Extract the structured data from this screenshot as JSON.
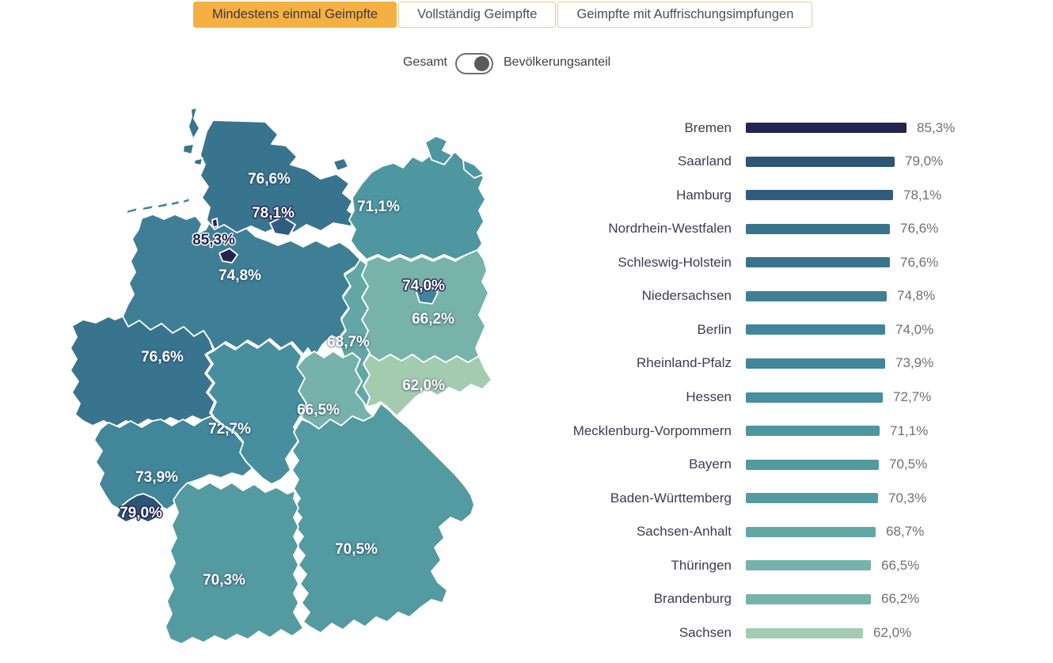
{
  "tabs": [
    {
      "id": "mindestens-einmal-geimpfte",
      "label": "Mindestens einmal Geimpfte",
      "active": true
    },
    {
      "id": "vollstaendig-geimpfte",
      "label": "Vollständig Geimpfte",
      "active": false
    },
    {
      "id": "geimpfte-mit-auffrischungsimpfungen",
      "label": "Geimpfte mit Auffrischungsimpfungen",
      "active": false
    }
  ],
  "toggle": {
    "left_label": "Gesamt",
    "right_label": "Bevölkerungsanteil",
    "selected": "right"
  },
  "colors": {
    "active_tab_bg": "#f4b042",
    "tab_border": "#ecca8e",
    "toggle_knob": "#5a5a5a",
    "toggle_border": "#6e6e6e",
    "bar_name_text": "#3c3c50",
    "bar_value_text": "#6f6f6f",
    "map_border": "#ffffff"
  },
  "chart_data": {
    "type": "bar",
    "subtype": "choropleth-map-with-horizontal-bars",
    "orientation": "horizontal",
    "unit": "%",
    "number_format": "de-DE comma decimals",
    "xlim": [
      0,
      85.3
    ],
    "legend": "none",
    "grid": false,
    "categories": [
      "Bremen",
      "Saarland",
      "Hamburg",
      "Nordrhein-Westfalen",
      "Schleswig-Holstein",
      "Niedersachsen",
      "Berlin",
      "Rheinland-Pfalz",
      "Hessen",
      "Mecklenburg-Vorpommern",
      "Bayern",
      "Baden-Württemberg",
      "Sachsen-Anhalt",
      "Thüringen",
      "Brandenburg",
      "Sachsen"
    ],
    "values": [
      85.3,
      79.0,
      78.1,
      76.6,
      76.6,
      74.8,
      74.0,
      73.9,
      72.7,
      71.1,
      70.5,
      70.3,
      68.7,
      66.5,
      66.2,
      62.0
    ],
    "states": [
      {
        "id": "bremen",
        "name": "Bremen",
        "value": 85.3,
        "display": "85,3%",
        "color": "#232450",
        "label_style": "dark-halo"
      },
      {
        "id": "saarland",
        "name": "Saarland",
        "value": 79.0,
        "display": "79,0%",
        "color": "#2d5574",
        "label_style": "light-halo"
      },
      {
        "id": "hamburg",
        "name": "Hamburg",
        "value": 78.1,
        "display": "78,1%",
        "color": "#305d7d",
        "label_style": "light-halo"
      },
      {
        "id": "nordrhein-westfalen",
        "name": "Nordrhein-Westfalen",
        "value": 76.6,
        "display": "76,6%",
        "color": "#39748f",
        "label_style": "light"
      },
      {
        "id": "schleswig-holstein",
        "name": "Schleswig-Holstein",
        "value": 76.6,
        "display": "76,6%",
        "color": "#39748f",
        "label_style": "light"
      },
      {
        "id": "niedersachsen",
        "name": "Niedersachsen",
        "value": 74.8,
        "display": "74,8%",
        "color": "#3e7f96",
        "label_style": "light"
      },
      {
        "id": "berlin",
        "name": "Berlin",
        "value": 74.0,
        "display": "74,0%",
        "color": "#41859a",
        "label_style": "light-halo"
      },
      {
        "id": "rheinland-pfalz",
        "name": "Rheinland-Pfalz",
        "value": 73.9,
        "display": "73,9%",
        "color": "#42869a",
        "label_style": "light"
      },
      {
        "id": "hessen",
        "name": "Hessen",
        "value": 72.7,
        "display": "72,7%",
        "color": "#478e9e",
        "label_style": "light"
      },
      {
        "id": "mecklenburg-vorpommern",
        "name": "Mecklenburg-Vorpommern",
        "value": 71.1,
        "display": "71,1%",
        "color": "#4f97a0",
        "label_style": "light"
      },
      {
        "id": "bayern",
        "name": "Bayern",
        "value": 70.5,
        "display": "70,5%",
        "color": "#539aa1",
        "label_style": "light"
      },
      {
        "id": "baden-wuerttemberg",
        "name": "Baden-Württemberg",
        "value": 70.3,
        "display": "70,3%",
        "color": "#549ba1",
        "label_style": "light"
      },
      {
        "id": "sachsen-anhalt",
        "name": "Sachsen-Anhalt",
        "value": 68.7,
        "display": "68,7%",
        "color": "#63a6a6",
        "label_style": "light"
      },
      {
        "id": "thueringen",
        "name": "Thüringen",
        "value": 66.5,
        "display": "66,5%",
        "color": "#76b2ab",
        "label_style": "light"
      },
      {
        "id": "brandenburg",
        "name": "Brandenburg",
        "value": 66.2,
        "display": "66,2%",
        "color": "#78b3ab",
        "label_style": "light"
      },
      {
        "id": "sachsen",
        "name": "Sachsen",
        "value": 62.0,
        "display": "62,0%",
        "color": "#a3cbb0",
        "label_style": "light"
      }
    ]
  }
}
